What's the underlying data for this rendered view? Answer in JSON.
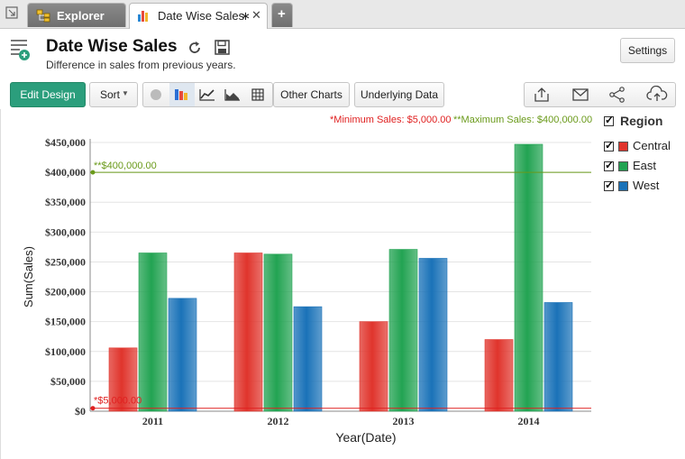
{
  "tabs": [
    {
      "label": "Explorer",
      "active": false
    },
    {
      "label": "Date Wise Sales",
      "active": true,
      "modified_marker": "∗"
    }
  ],
  "header": {
    "title": "Date Wise Sales",
    "subtitle": "Difference in sales from previous years."
  },
  "toolbar": {
    "settings_label": "Settings",
    "edit_design_label": "Edit Design",
    "sort_label": "Sort",
    "other_charts_label": "Other Charts",
    "underlying_data_label": "Underlying Data"
  },
  "thresholds": {
    "min_label": "*Minimum Sales: $5,000.00",
    "max_label": "**Maximum Sales: $400,000.00",
    "min_line_label": "*$5,000.00",
    "max_line_label": "**$400,000.00",
    "min_value": 5000,
    "max_value": 400000,
    "min_color": "#e02020",
    "max_color": "#6a9a1a"
  },
  "legend": {
    "title": "Region",
    "items": [
      {
        "label": "Central",
        "color": "#e0342c"
      },
      {
        "label": "East",
        "color": "#22a352"
      },
      {
        "label": "West",
        "color": "#1a72b8"
      }
    ]
  },
  "chart_data": {
    "type": "bar",
    "categories": [
      "2011",
      "2012",
      "2013",
      "2014"
    ],
    "series": [
      {
        "name": "Central",
        "values": [
          106000,
          265000,
          150000,
          120000
        ],
        "color": "#e0342c"
      },
      {
        "name": "East",
        "values": [
          265000,
          263000,
          271000,
          447000
        ],
        "color": "#22a352"
      },
      {
        "name": "West",
        "values": [
          189000,
          175000,
          256000,
          182000
        ],
        "color": "#1a72b8"
      }
    ],
    "xlabel": "Year(Date)",
    "ylabel": "Sum(Sales)",
    "ylim": [
      0,
      450000
    ],
    "yticks": [
      0,
      50000,
      100000,
      150000,
      200000,
      250000,
      300000,
      350000,
      400000,
      450000
    ],
    "ytick_labels": [
      "$0",
      "$50,000",
      "$100,000",
      "$150,000",
      "$200,000",
      "$250,000",
      "$300,000",
      "$350,000",
      "$400,000",
      "$450,000"
    ],
    "grid": true,
    "legend_position": "right"
  }
}
